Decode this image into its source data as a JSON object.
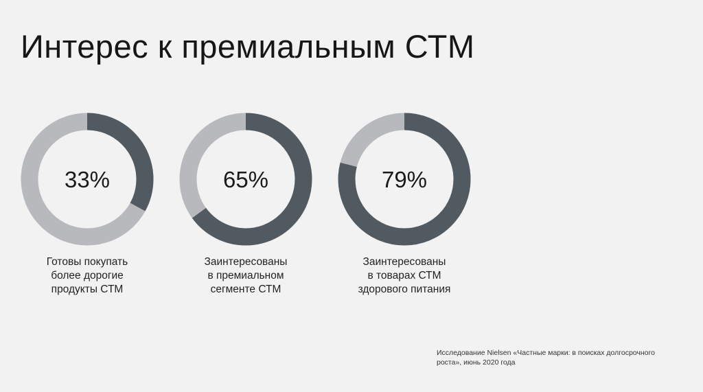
{
  "title": "Интерес к премиальным СТМ",
  "colors": {
    "background": "#f2f2f2",
    "filled": "#525a61",
    "remainder": "#b8b9bd"
  },
  "chart_data": {
    "type": "pie",
    "variant": "donut",
    "title": "Интерес к премиальным СТМ",
    "items": [
      {
        "value": 33,
        "value_label": "33%",
        "caption_lines": [
          "Готовы покупать",
          "более дорогие",
          "продукты СТМ"
        ]
      },
      {
        "value": 65,
        "value_label": "65%",
        "caption_lines": [
          "Заинтересованы",
          "в премиальном",
          "сегменте СТМ"
        ]
      },
      {
        "value": 79,
        "value_label": "79%",
        "caption_lines": [
          "Заинтересованы",
          "в товарах СТМ",
          "здорового питания"
        ]
      }
    ]
  },
  "source": {
    "lines": [
      "Исследование Nielsen «Частные марки: в поисках долгосрочного",
      "роста», июнь 2020 года"
    ]
  }
}
